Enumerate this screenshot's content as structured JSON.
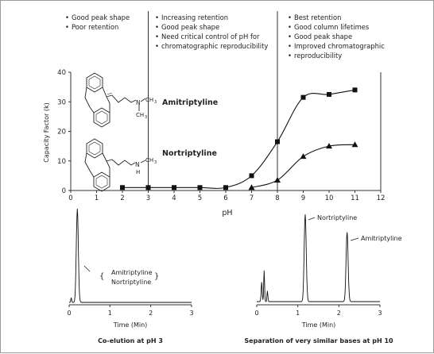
{
  "ph_regions": [
    [
      "Good peak shape",
      "Poor retention"
    ],
    [
      "Increasing retention",
      "Good peak shape",
      "Need critical control of pH for",
      "chromatographic reproducibility"
    ],
    [
      "Best retention",
      "Good column lifetimes",
      "Good peak shape",
      "Improved chromatographic",
      "reproducibility"
    ]
  ],
  "chart_data": [
    {
      "type": "line",
      "xlabel": "pH",
      "ylabel": "Capacity Factor (k)",
      "xlim": [
        0,
        12
      ],
      "ylim": [
        0,
        40
      ],
      "xticks": [
        "0",
        "1",
        "2",
        "3",
        "4",
        "5",
        "6",
        "7",
        "8",
        "9",
        "10",
        "11",
        "12"
      ],
      "yticks": [
        "0",
        "10",
        "20",
        "30",
        "40"
      ],
      "region_boundaries_ph": [
        3,
        8
      ],
      "series": [
        {
          "name": "Amitriptyline",
          "marker": "square",
          "x": [
            2,
            3,
            4,
            5,
            6,
            7,
            8,
            9,
            10,
            11
          ],
          "values": [
            1,
            1,
            1,
            1,
            1,
            5,
            16.5,
            31.5,
            32.5,
            34
          ]
        },
        {
          "name": "Nortriptyline",
          "marker": "triangle",
          "x": [
            7,
            8,
            9,
            10,
            11
          ],
          "values": [
            1,
            3.5,
            11.5,
            15,
            15.5
          ]
        }
      ]
    },
    {
      "type": "line",
      "caption": "Co-elution at pH 3",
      "xlabel": "Time (Min)",
      "xlim": [
        0,
        3
      ],
      "xticks": [
        "0",
        "1",
        "2",
        "3"
      ],
      "peak_labels": [
        "Amitriptyline",
        "Nortriptyline"
      ],
      "peaks": [
        {
          "time": 0.2,
          "relative_height": 1.0
        }
      ]
    },
    {
      "type": "line",
      "caption": "Separation of very similar bases at pH 10",
      "xlabel": "Time (Min)",
      "xlim": [
        0,
        3
      ],
      "xticks": [
        "0",
        "1",
        "2",
        "3"
      ],
      "peaks": [
        {
          "name": "Nortriptyline",
          "time": 1.18,
          "relative_height": 0.98
        },
        {
          "name": "Amitriptyline",
          "time": 2.2,
          "relative_height": 0.78
        }
      ]
    }
  ]
}
